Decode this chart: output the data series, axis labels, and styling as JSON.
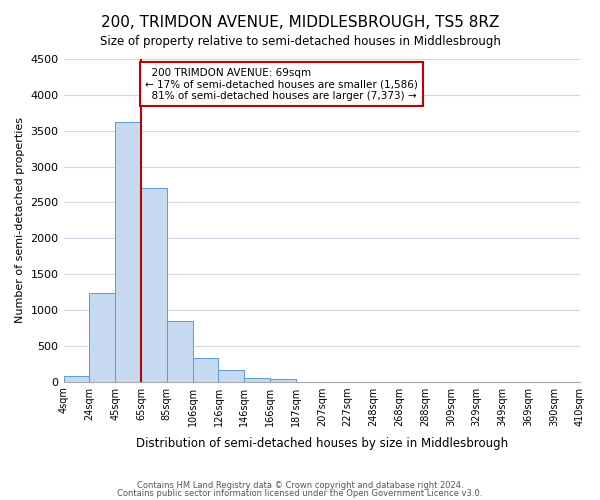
{
  "title": "200, TRIMDON AVENUE, MIDDLESBROUGH, TS5 8RZ",
  "subtitle": "Size of property relative to semi-detached houses in Middlesbrough",
  "xlabel": "Distribution of semi-detached houses by size in Middlesbrough",
  "ylabel": "Number of semi-detached properties",
  "bin_labels": [
    "4sqm",
    "24sqm",
    "45sqm",
    "65sqm",
    "85sqm",
    "106sqm",
    "126sqm",
    "146sqm",
    "166sqm",
    "187sqm",
    "207sqm",
    "227sqm",
    "248sqm",
    "268sqm",
    "288sqm",
    "309sqm",
    "329sqm",
    "349sqm",
    "369sqm",
    "390sqm",
    "410sqm"
  ],
  "bar_values": [
    80,
    1230,
    3620,
    2700,
    850,
    325,
    160,
    55,
    30,
    0,
    0,
    0,
    0,
    0,
    0,
    0,
    0,
    0,
    0,
    0
  ],
  "bar_color": "#c6d9f1",
  "bar_edge_color": "#5b9bd5",
  "vline_x": 2.5,
  "marker_label": "200 TRIMDON AVENUE: 69sqm",
  "smaller_pct": "17%",
  "smaller_count": "1,586",
  "larger_pct": "81%",
  "larger_count": "7,373",
  "vline_color": "#c00000",
  "annotation_box_edge": "#c00000",
  "ylim": [
    0,
    4500
  ],
  "yticks": [
    0,
    500,
    1000,
    1500,
    2000,
    2500,
    3000,
    3500,
    4000,
    4500
  ],
  "footer_line1": "Contains HM Land Registry data © Crown copyright and database right 2024.",
  "footer_line2": "Contains public sector information licensed under the Open Government Licence v3.0.",
  "bg_color": "#ffffff",
  "grid_color": "#d0d8e8"
}
